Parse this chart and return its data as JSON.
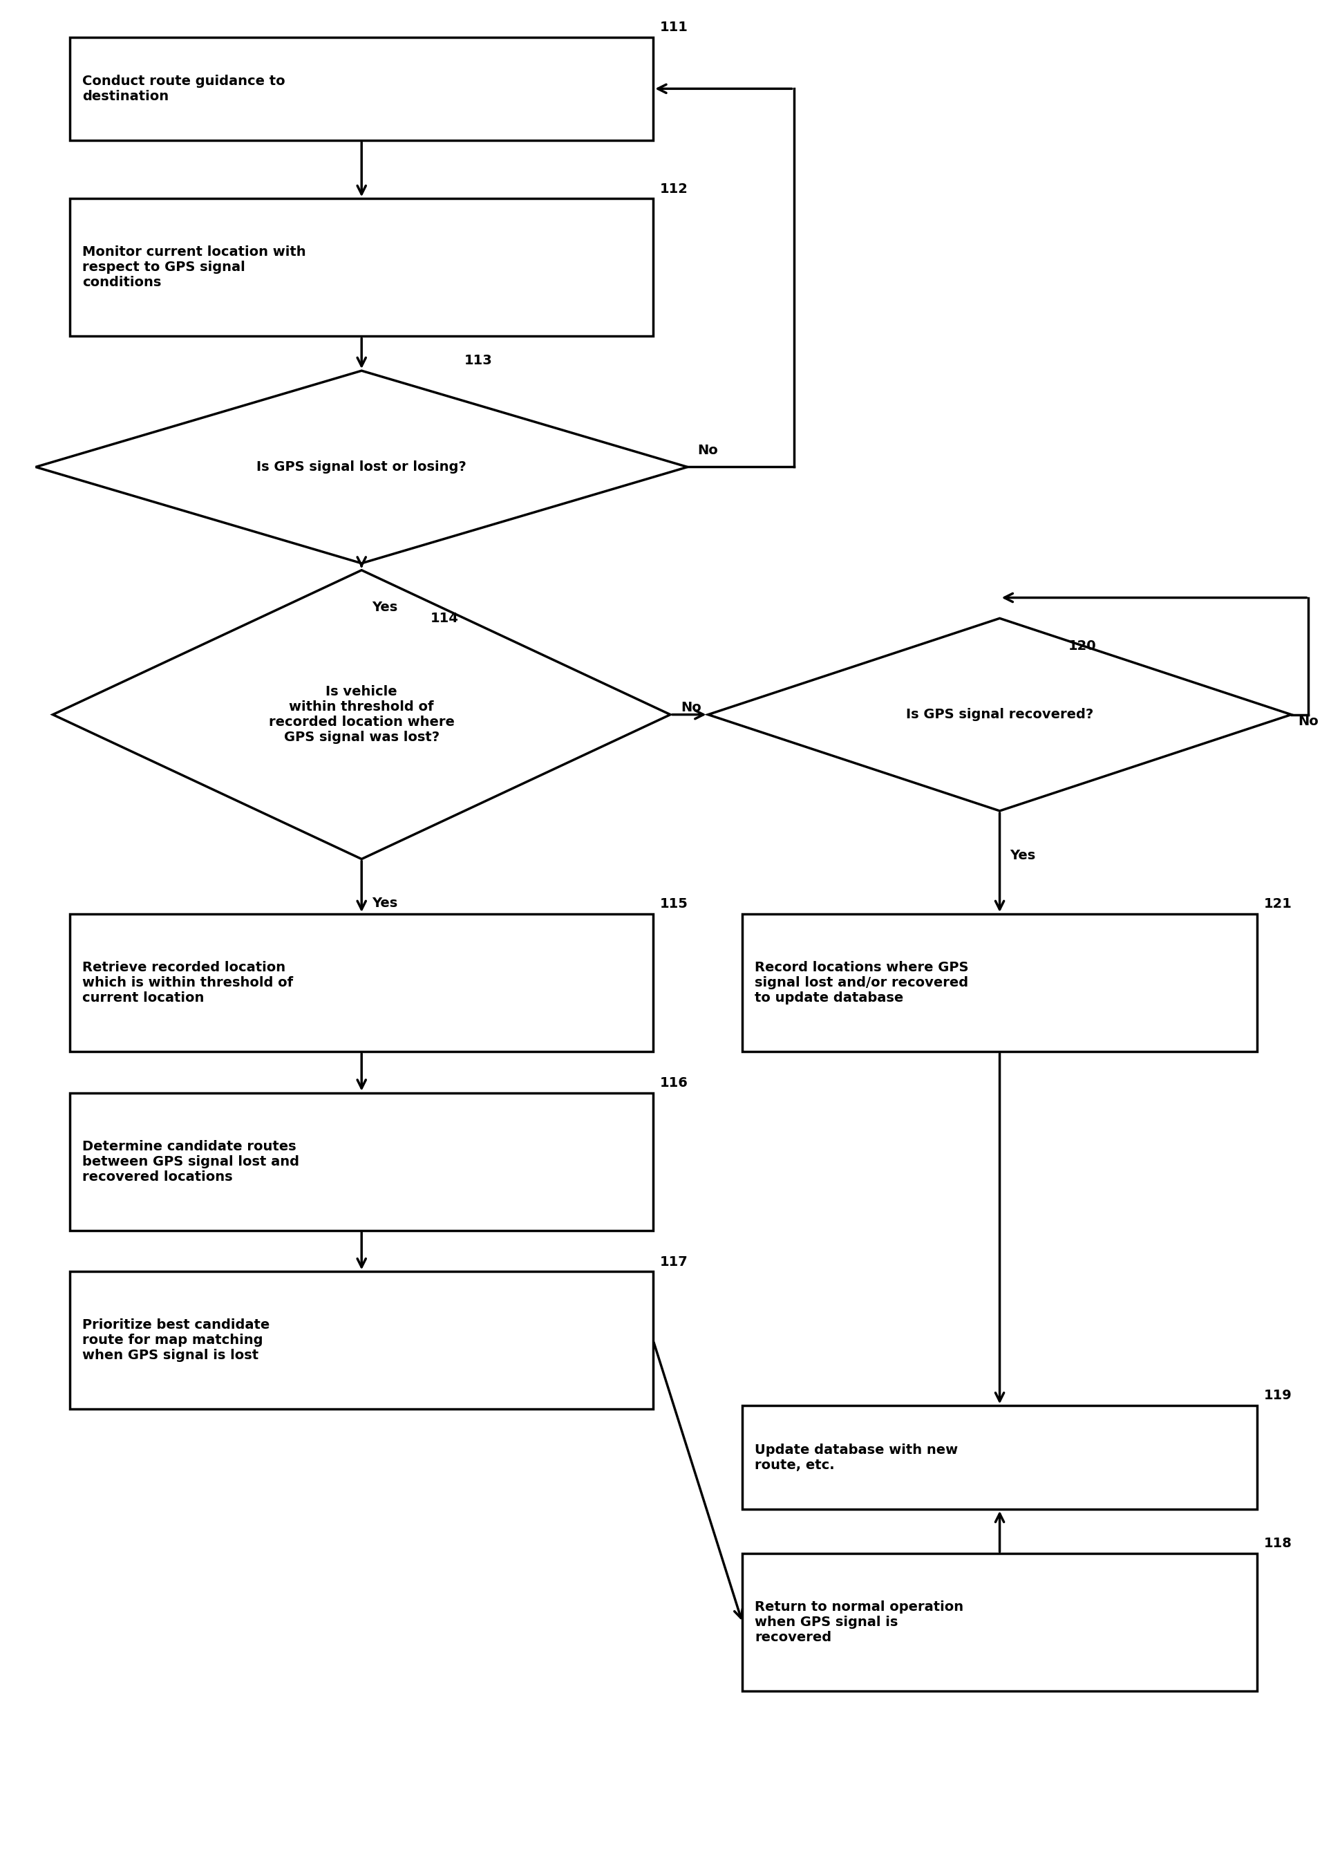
{
  "bg_color": "#ffffff",
  "nodes": {
    "111": {
      "label": "Conduct route guidance to\ndestination"
    },
    "112": {
      "label": "Monitor current location with\nrespect to GPS signal\nconditions"
    },
    "113": {
      "label": "Is GPS signal lost or losing?"
    },
    "114": {
      "label": "Is vehicle\nwithin threshold of\nrecorded location where\nGPS signal was lost?"
    },
    "120": {
      "label": "Is GPS signal recovered?"
    },
    "115": {
      "label": "Retrieve recorded location\nwhich is within threshold of\ncurrent location"
    },
    "116": {
      "label": "Determine candidate routes\nbetween GPS signal lost and\nrecovered locations"
    },
    "117": {
      "label": "Prioritize best candidate\nroute for map matching\nwhen GPS signal is lost"
    },
    "118": {
      "label": "Return to normal operation\nwhen GPS signal is\nrecovered"
    },
    "119": {
      "label": "Update database with new\nroute, etc."
    },
    "121": {
      "label": "Record locations where GPS\nsignal lost and/or recovered\nto update database"
    }
  },
  "lw": 2.5,
  "fontsize": 14,
  "ref_fontsize": 14
}
